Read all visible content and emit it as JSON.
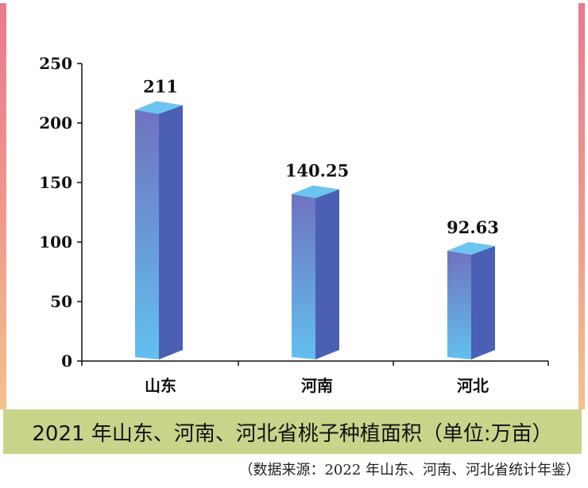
{
  "chart_data": {
    "type": "bar",
    "title": "2021 年山东、河南、河北省桃子种植面积（单位:万亩）",
    "source": "（数据来源：2022 年山东、河南、河北省统计年鉴）",
    "categories": [
      "山东",
      "河南",
      "河北"
    ],
    "values": [
      211,
      140.25,
      92.63
    ],
    "value_labels": [
      "211",
      "140.25",
      "92.63"
    ],
    "ylim": [
      0,
      250
    ],
    "yticks": [
      0,
      50,
      100,
      150,
      200,
      250
    ],
    "xlabel": "",
    "ylabel": "",
    "grid": false,
    "legend": "none",
    "colors": {
      "bar_front_top": "#6f72c0",
      "bar_front_bottom": "#62c0ef",
      "bar_side": "#4b5fb4",
      "bar_top": "#6cc4f0",
      "axis": "#111111",
      "caption_bg": "#c8d48a"
    }
  }
}
